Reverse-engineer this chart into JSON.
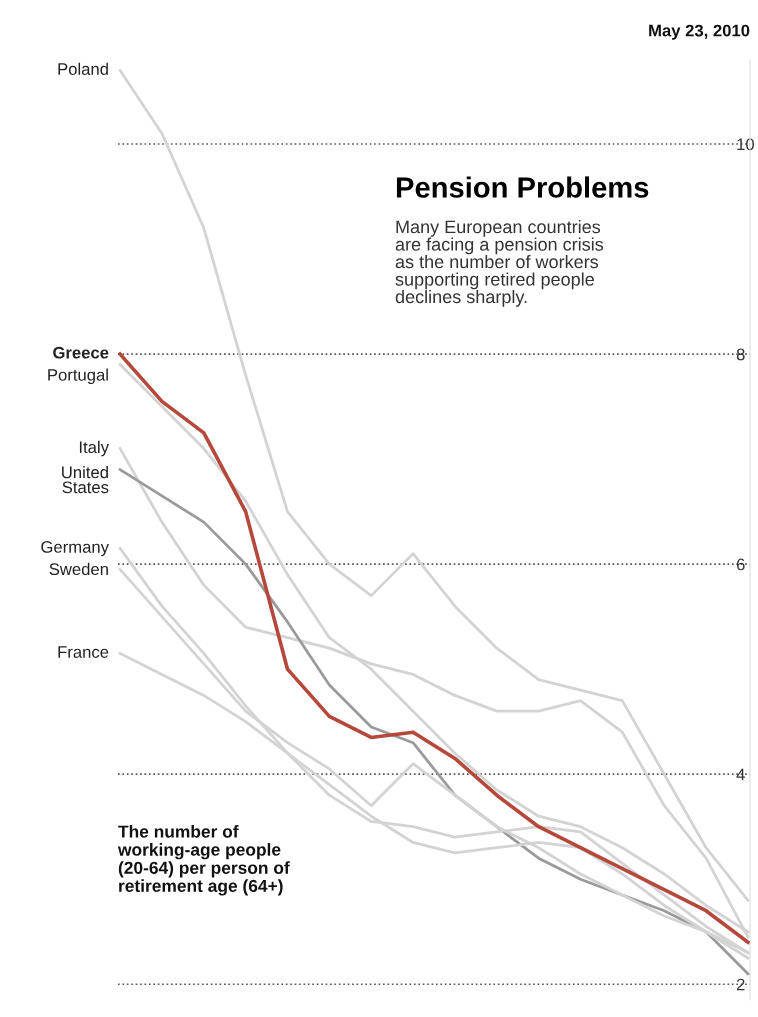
{
  "chart_data": {
    "type": "line",
    "title": "Pension Problems",
    "subtitle": "Many European countries\nare facing a pension crisis\nas the number of workers\nsupporting retired people\ndeclines sharply.",
    "annotations": [
      "May 23, 2010",
      "The number of\nworking-age people\n(20-64) per person of\nretirement age (64+)"
    ],
    "categories": [
      null,
      null,
      null,
      null,
      null,
      null,
      null,
      null,
      null,
      null,
      null,
      null,
      null,
      null,
      null,
      null
    ],
    "series": [
      {
        "name": "Poland",
        "color": "#d3d3d3",
        "values": [
          10.7,
          10.1,
          9.2,
          7.8,
          6.5,
          6.0,
          5.7,
          6.1,
          5.6,
          5.2,
          4.9,
          4.8,
          4.7,
          4.0,
          3.3,
          2.8
        ]
      },
      {
        "name": "Portugal",
        "color": "#d3d3d3",
        "values": [
          7.9,
          7.5,
          7.1,
          6.6,
          5.9,
          5.3,
          5.0,
          4.6,
          4.2,
          3.85,
          3.6,
          3.5,
          3.3,
          3.05,
          2.75,
          2.5
        ]
      },
      {
        "name": "Italy",
        "color": "#d3d3d3",
        "values": [
          7.1,
          6.4,
          5.8,
          5.4,
          5.3,
          5.2,
          5.05,
          4.95,
          4.75,
          4.6,
          4.6,
          4.7,
          4.4,
          3.7,
          3.2,
          2.45
        ]
      },
      {
        "name": "United\nStates",
        "color": "#9a9a9a",
        "values": [
          6.9,
          6.65,
          6.4,
          6.0,
          5.45,
          4.85,
          4.45,
          4.3,
          3.8,
          3.5,
          3.2,
          3.0,
          2.85,
          2.7,
          2.5,
          2.1
        ]
      },
      {
        "name": "Germany",
        "color": "#d3d3d3",
        "values": [
          6.15,
          5.6,
          5.15,
          4.65,
          4.2,
          3.8,
          3.55,
          3.5,
          3.4,
          3.45,
          3.5,
          3.45,
          3.15,
          2.85,
          2.55,
          2.3
        ]
      },
      {
        "name": "Sweden",
        "color": "#d3d3d3",
        "values": [
          5.95,
          5.5,
          5.05,
          4.6,
          4.3,
          4.05,
          3.7,
          4.1,
          3.8,
          3.5,
          3.3,
          3.05,
          2.85,
          2.65,
          2.5,
          2.25
        ]
      },
      {
        "name": "France",
        "color": "#d3d3d3",
        "values": [
          5.15,
          4.95,
          4.75,
          4.5,
          4.2,
          3.9,
          3.6,
          3.35,
          3.25,
          3.3,
          3.35,
          3.3,
          3.05,
          2.75,
          2.5,
          2.3
        ]
      },
      {
        "name": "Greece",
        "color": "#b5483a",
        "values": [
          8.0,
          7.55,
          7.25,
          6.5,
          5.0,
          4.55,
          4.35,
          4.4,
          4.15,
          3.8,
          3.5,
          3.3,
          3.1,
          2.9,
          2.7,
          2.4
        ]
      }
    ],
    "ylim": [
      1.85,
      10.8
    ],
    "yticks": [
      2,
      4,
      6,
      8,
      10
    ],
    "grid": "y",
    "legend": false,
    "line_style": "solid",
    "marker": "none"
  }
}
